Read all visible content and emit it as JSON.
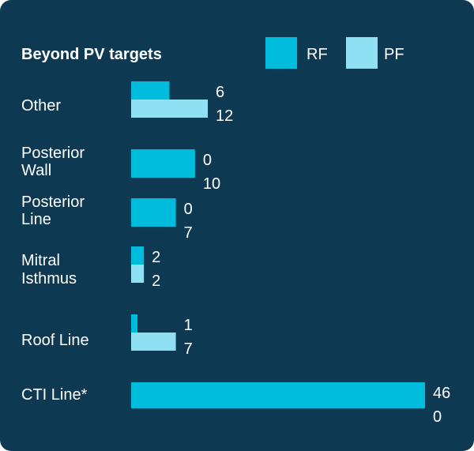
{
  "chart_data": {
    "type": "bar",
    "orientation": "horizontal",
    "title": "Beyond PV targets",
    "categories": [
      [
        "Other"
      ],
      [
        "Posterior",
        "Wall"
      ],
      [
        "Posterior",
        "Line"
      ],
      [
        "Mitral",
        "Isthmus"
      ],
      [
        "Roof Line"
      ],
      [
        "CTI Line*"
      ]
    ],
    "series": [
      {
        "name": "RF",
        "color": "#00bcdc",
        "values": [
          6,
          0,
          0,
          2,
          1,
          46
        ]
      },
      {
        "name": "PF",
        "color": "#8ee0f2",
        "values": [
          12,
          10,
          7,
          2,
          7,
          0
        ]
      }
    ],
    "value_labels": [
      [
        "6",
        "12"
      ],
      [
        "0",
        "10"
      ],
      [
        "0",
        "7"
      ],
      [
        "2",
        "2"
      ],
      [
        "1",
        "7"
      ],
      [
        "46",
        "0"
      ]
    ],
    "legend_position": "top-right",
    "grid": false,
    "background": "#0d3a52"
  }
}
